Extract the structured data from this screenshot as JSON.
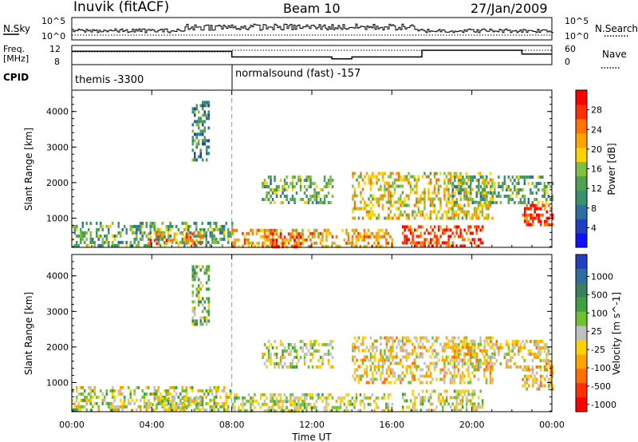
{
  "header": {
    "station": "Inuvik (fitACF)",
    "beam": "Beam 10",
    "date": "27/Jan/2009"
  },
  "noise_panel": {
    "left_label": "N.Sky",
    "left_ticks": [
      "10^5",
      "10^0"
    ],
    "right_ticks": [
      "10^5",
      "10^0"
    ],
    "right_label": "N.Search"
  },
  "freq_panel": {
    "left_label_1": "Freq.",
    "left_label_2": "[MHz]",
    "left_ticks": [
      "12",
      "8"
    ],
    "right_ticks": [
      "60",
      "0"
    ],
    "right_label": "Nave"
  },
  "cpid_panel": {
    "label": "CPID",
    "modes": [
      {
        "name": "themis -3300",
        "start_hour": 0
      },
      {
        "name": "normalsound (fast) -157",
        "start_hour": 8
      }
    ]
  },
  "power_panel": {
    "ylabel": "Slant Range [km]",
    "yticks": [
      "1000",
      "2000",
      "3000",
      "4000"
    ],
    "colorbar_label": "Power [dB]",
    "colorbar_ticks": [
      "4",
      "8",
      "12",
      "16",
      "20",
      "24",
      "28"
    ],
    "colorbar_colors": [
      "#1010ff",
      "#2040c0",
      "#2c6fa0",
      "#3a9070",
      "#4fa050",
      "#80c040",
      "#ffd200",
      "#ffa500",
      "#ff7400",
      "#ff3000",
      "#ff0000"
    ]
  },
  "velocity_panel": {
    "ylabel": "Slant Range [km]",
    "yticks": [
      "1000",
      "2000",
      "3000",
      "4000"
    ],
    "colorbar_label": "Velocity [m s^-1]",
    "colorbar_ticks": [
      "1000",
      "500",
      "100",
      "25",
      "-25",
      "-100",
      "-500",
      "-1000"
    ],
    "colorbar_colors": [
      "#2040c0",
      "#2c6fa0",
      "#3a8060",
      "#40a040",
      "#70c030",
      "#c0c0c0",
      "#ffd200",
      "#ffa500",
      "#ff7000",
      "#ff3000",
      "#ff0000"
    ]
  },
  "xaxis": {
    "label": "Time UT",
    "ticks": [
      "00:00",
      "04:00",
      "08:00",
      "12:00",
      "16:00",
      "20:00",
      "00:00"
    ]
  },
  "chart_data": {
    "type": "heatmap",
    "title": "Inuvik (fitACF) Beam 10 27/Jan/2009",
    "xlabel": "Time UT",
    "ylabel": "Slant Range [km]",
    "xlim_hours": [
      0,
      24
    ],
    "ylim_km": [
      180,
      4600
    ],
    "power_colorbar_range_db": [
      0,
      32
    ],
    "velocity_colorbar_range": [
      -1000,
      1000
    ],
    "echo_regions": [
      {
        "t_start": 0.0,
        "t_end": 8.0,
        "r_low": 200,
        "r_high": 900,
        "power_db": 14,
        "velocity": 80
      },
      {
        "t_start": 3.8,
        "t_end": 6.5,
        "r_low": 250,
        "r_high": 600,
        "power_db": 26,
        "velocity": 60
      },
      {
        "t_start": 6.0,
        "t_end": 6.8,
        "r_low": 2600,
        "r_high": 4300,
        "power_db": 10,
        "velocity": 300
      },
      {
        "t_start": 8.0,
        "t_end": 16.0,
        "r_low": 200,
        "r_high": 700,
        "power_db": 22,
        "velocity": 40
      },
      {
        "t_start": 10.0,
        "t_end": 11.5,
        "r_low": 200,
        "r_high": 600,
        "power_db": 29,
        "velocity": 50
      },
      {
        "t_start": 9.5,
        "t_end": 13.0,
        "r_low": 1400,
        "r_high": 2200,
        "power_db": 12,
        "velocity": 60
      },
      {
        "t_start": 14.0,
        "t_end": 21.0,
        "r_low": 1000,
        "r_high": 2300,
        "power_db": 20,
        "velocity": -150
      },
      {
        "t_start": 16.5,
        "t_end": 20.5,
        "r_low": 200,
        "r_high": 800,
        "power_db": 29,
        "velocity": -60
      },
      {
        "t_start": 19.0,
        "t_end": 24.0,
        "r_low": 1400,
        "r_high": 2200,
        "power_db": 14,
        "velocity": -200
      },
      {
        "t_start": 22.5,
        "t_end": 24.0,
        "r_low": 800,
        "r_high": 1400,
        "power_db": 28,
        "velocity": -250
      }
    ],
    "nave_high": 40,
    "nave_low": 7
  }
}
